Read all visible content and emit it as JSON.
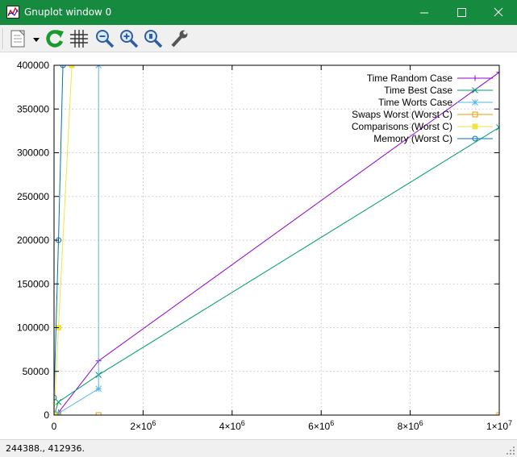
{
  "window": {
    "title": "Gnuplot window 0"
  },
  "toolbar": {
    "buttons": [
      {
        "icon": "copy-clipboard-icon"
      },
      {
        "icon": "replot-icon"
      },
      {
        "icon": "grid-icon"
      },
      {
        "icon": "zoom-out-icon"
      },
      {
        "icon": "zoom-in-icon"
      },
      {
        "icon": "zoom-previous-icon"
      },
      {
        "icon": "options-wrench-icon"
      }
    ]
  },
  "status": {
    "text": "244388., 412936."
  },
  "chart_data": {
    "type": "line",
    "xlim": [
      0,
      10000000
    ],
    "ylim": [
      0,
      400000
    ],
    "x_ticks": [
      {
        "value": 0,
        "base": "0",
        "exp": ""
      },
      {
        "value": 2000000,
        "base": "2×10",
        "exp": "6"
      },
      {
        "value": 4000000,
        "base": "4×10",
        "exp": "6"
      },
      {
        "value": 6000000,
        "base": "6×10",
        "exp": "6"
      },
      {
        "value": 8000000,
        "base": "8×10",
        "exp": "6"
      },
      {
        "value": 10000000,
        "base": "1×10",
        "exp": "7"
      }
    ],
    "y_ticks": [
      0,
      50000,
      100000,
      150000,
      200000,
      250000,
      300000,
      350000,
      400000
    ],
    "grid": true,
    "legend_position": "top-right",
    "series": [
      {
        "name": "Time Random Case",
        "color": "#9400d3",
        "marker": "plus",
        "x": [
          0,
          100000,
          1000000,
          10000000
        ],
        "y": [
          0,
          3000,
          62000,
          392000
        ]
      },
      {
        "name": "Time Best Case",
        "color": "#009e73",
        "marker": "cross",
        "x": [
          0,
          100000,
          1000000,
          10000000
        ],
        "y": [
          0,
          15000,
          46000,
          329000
        ]
      },
      {
        "name": "Time Worts Case",
        "color": "#56b4e9",
        "marker": "star",
        "x": [
          0,
          100000,
          1000000,
          1000000
        ],
        "y": [
          0,
          2000,
          30000,
          400000
        ]
      },
      {
        "name": "Swaps Worst (Worst C)",
        "color": "#e69f00",
        "marker": "square",
        "x": [
          0,
          100000,
          1000000,
          10000000
        ],
        "y": [
          0,
          0,
          0,
          0
        ]
      },
      {
        "name": "Comparisons (Worst C)",
        "color": "#f0e442",
        "marker": "filled-square",
        "x": [
          0,
          100000,
          400000
        ],
        "y": [
          0,
          100000,
          400000
        ]
      },
      {
        "name": "Memory (Worst C)",
        "color": "#0072b2",
        "marker": "circle",
        "x": [
          0,
          100000,
          200000
        ],
        "y": [
          20000,
          200000,
          400000
        ]
      }
    ]
  }
}
